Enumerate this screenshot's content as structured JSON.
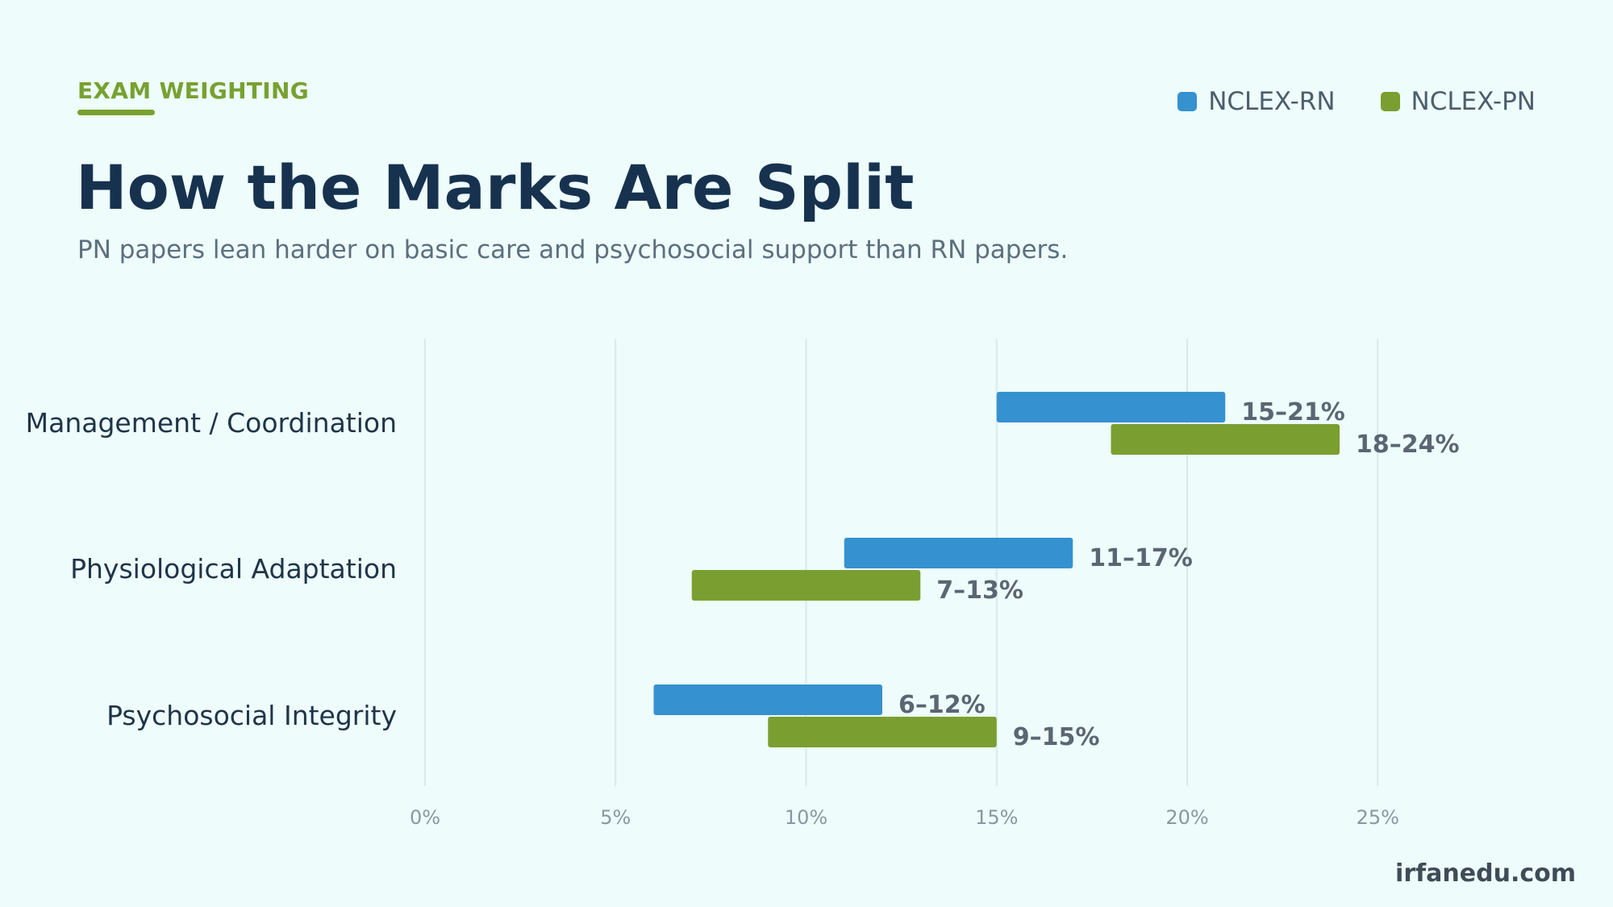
{
  "header": {
    "eyebrow": "EXAM WEIGHTING",
    "title": "How the Marks Are Split",
    "subtitle": "PN papers lean harder on basic care and psychosocial support than RN papers."
  },
  "legend": [
    {
      "label": "NCLEX-RN",
      "color": "#3591d0"
    },
    {
      "label": "NCLEX-PN",
      "color": "#7b9e31"
    }
  ],
  "footer": {
    "watermark": "irfanedu.com"
  },
  "chart_data": {
    "type": "bar",
    "orientation": "horizontal-range",
    "categories": [
      "Management / Coordination",
      "Physiological Adaptation",
      "Psychosocial Integrity"
    ],
    "xlim": [
      0,
      25
    ],
    "xticks": [
      0,
      5,
      10,
      15,
      20,
      25
    ],
    "xtick_labels": [
      "0%",
      "5%",
      "10%",
      "15%",
      "20%",
      "25%"
    ],
    "grid": true,
    "legend_position": "top-right",
    "series": [
      {
        "name": "NCLEX-RN",
        "color": "#3591d0",
        "ranges": [
          [
            15,
            21
          ],
          [
            11,
            17
          ],
          [
            6,
            12
          ]
        ],
        "labels": [
          "15–21%",
          "11–17%",
          "6–12%"
        ]
      },
      {
        "name": "NCLEX-PN",
        "color": "#7b9e31",
        "ranges": [
          [
            18,
            24
          ],
          [
            7,
            13
          ],
          [
            9,
            15
          ]
        ],
        "labels": [
          "18–24%",
          "7–13%",
          "9–15%"
        ]
      }
    ]
  }
}
